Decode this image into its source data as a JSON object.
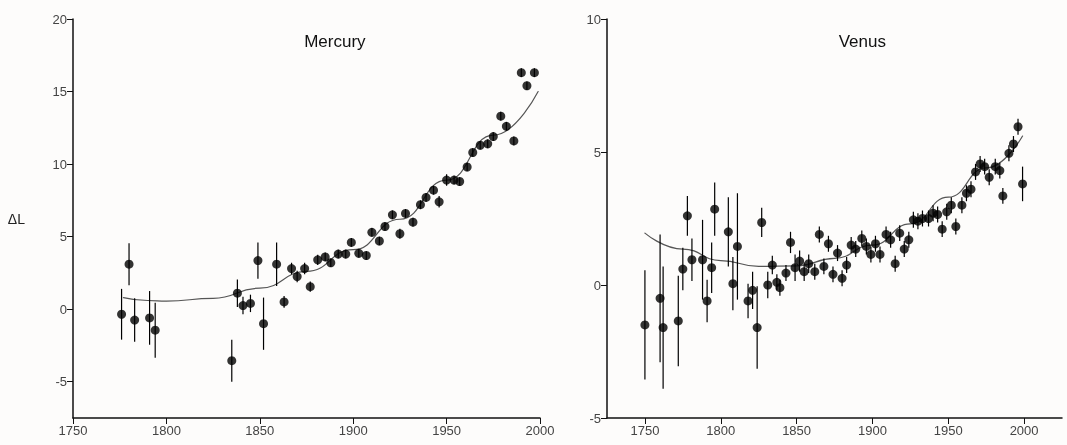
{
  "chart_data": [
    {
      "type": "scatter",
      "title": "Mercury",
      "ylabel": "ΔL",
      "xlim": [
        1750,
        2000
      ],
      "xticks": [
        1750,
        1800,
        1850,
        1900,
        1950,
        2000
      ],
      "ylim": [
        -7.5,
        20
      ],
      "yticks": [
        -5,
        0,
        5,
        10,
        15,
        20
      ],
      "marker": "circle",
      "grid": false,
      "series": [
        {
          "color": "#000000",
          "x": [
            1776,
            1780,
            1783,
            1791,
            1794,
            1835,
            1838,
            1841,
            1845,
            1849,
            1852,
            1859,
            1863,
            1867,
            1870,
            1874,
            1877,
            1881,
            1885,
            1888,
            1892,
            1896,
            1899,
            1903,
            1907,
            1910,
            1914,
            1917,
            1921,
            1925,
            1928,
            1932,
            1936,
            1939,
            1943,
            1946,
            1950,
            1954,
            1957,
            1961,
            1964,
            1968,
            1972,
            1975,
            1979,
            1982,
            1986,
            1990,
            1993,
            1997
          ],
          "values": [
            -0.35,
            3.1,
            -0.75,
            -0.6,
            -1.45,
            -3.55,
            1.1,
            0.25,
            0.4,
            3.35,
            -1.0,
            3.1,
            0.5,
            2.8,
            2.25,
            2.8,
            1.55,
            3.4,
            3.6,
            3.2,
            3.8,
            3.8,
            4.6,
            3.85,
            3.7,
            5.3,
            4.7,
            5.7,
            6.5,
            5.2,
            6.6,
            6.0,
            7.2,
            7.7,
            8.2,
            7.4,
            8.9,
            8.9,
            8.8,
            9.8,
            10.8,
            11.3,
            11.4,
            11.9,
            13.3,
            12.6,
            11.6,
            16.3,
            15.4,
            16.3
          ],
          "errors": [
            1.75,
            1.45,
            1.5,
            1.85,
            1.9,
            1.45,
            0.95,
            0.6,
            0.6,
            1.25,
            1.8,
            1.5,
            0.4,
            0.4,
            0.4,
            0.4,
            0.35,
            0.35,
            0.3,
            0.3,
            0.3,
            0.3,
            0.3,
            0.3,
            0.3,
            0.3,
            0.3,
            0.3,
            0.3,
            0.35,
            0.3,
            0.3,
            0.3,
            0.3,
            0.3,
            0.4,
            0.4,
            0.3,
            0.3,
            0.3,
            0.3,
            0.3,
            0.3,
            0.3,
            0.3,
            0.3,
            0.3,
            0.3,
            0.3,
            0.3
          ]
        },
        {
          "type": "line",
          "color": "#555555",
          "marker": "none",
          "x": [
            1777,
            1790,
            1800,
            1825,
            1850,
            1875,
            1900,
            1925,
            1950,
            1975,
            1999
          ],
          "values": [
            0.8,
            0.6,
            0.55,
            0.75,
            1.45,
            2.6,
            4.1,
            6.2,
            8.9,
            12.0,
            15.0
          ]
        }
      ]
    },
    {
      "type": "scatter",
      "title": "Venus",
      "xlim": [
        1725,
        2025
      ],
      "xticks": [
        1750,
        1800,
        1850,
        1900,
        1950,
        2000
      ],
      "ylim": [
        -5,
        10
      ],
      "yticks": [
        -5,
        0,
        5,
        10
      ],
      "marker": "circle",
      "grid": false,
      "series": [
        {
          "color": "#000000",
          "x": [
            1750,
            1760,
            1762,
            1772,
            1775,
            1778,
            1781,
            1788,
            1791,
            1794,
            1796,
            1805,
            1808,
            1811,
            1818,
            1821,
            1824,
            1827,
            1831,
            1834,
            1837,
            1839,
            1843,
            1846,
            1849,
            1852,
            1855,
            1858,
            1862,
            1865,
            1868,
            1871,
            1874,
            1877,
            1880,
            1883,
            1886,
            1889,
            1893,
            1896,
            1899,
            1902,
            1905,
            1909,
            1912,
            1915,
            1918,
            1921,
            1924,
            1927,
            1930,
            1933,
            1937,
            1940,
            1943,
            1946,
            1949,
            1952,
            1955,
            1959,
            1962,
            1965,
            1968,
            1971,
            1974,
            1977,
            1981,
            1984,
            1986,
            1990,
            1993,
            1996,
            1999
          ],
          "values": [
            -1.5,
            -0.5,
            -1.6,
            -1.35,
            0.6,
            2.6,
            0.95,
            0.95,
            -0.6,
            0.65,
            2.85,
            2.0,
            0.05,
            1.45,
            -0.6,
            -0.2,
            -1.6,
            2.35,
            0.0,
            0.75,
            0.1,
            -0.1,
            0.45,
            1.6,
            0.65,
            0.9,
            0.5,
            0.8,
            0.5,
            1.9,
            0.7,
            1.55,
            0.4,
            1.2,
            0.25,
            0.75,
            1.5,
            1.35,
            1.75,
            1.45,
            1.15,
            1.55,
            1.15,
            1.9,
            1.7,
            0.8,
            1.95,
            1.35,
            1.7,
            2.45,
            2.4,
            2.5,
            2.5,
            2.7,
            2.65,
            2.1,
            2.75,
            3.0,
            2.2,
            3.0,
            3.45,
            3.6,
            4.25,
            4.55,
            4.45,
            4.05,
            4.45,
            4.3,
            3.35,
            4.95,
            5.3,
            5.95,
            3.8
          ],
          "errors": [
            2.05,
            2.4,
            2.3,
            1.7,
            0.8,
            0.75,
            0.8,
            1.5,
            0.8,
            0.95,
            1.0,
            1.3,
            1.0,
            2.0,
            0.65,
            0.7,
            1.55,
            0.55,
            0.5,
            0.35,
            0.3,
            0.3,
            0.3,
            0.4,
            0.5,
            0.4,
            0.35,
            0.35,
            0.3,
            0.3,
            0.3,
            0.3,
            0.3,
            0.3,
            0.3,
            0.3,
            0.3,
            0.3,
            0.3,
            0.3,
            0.3,
            0.3,
            0.3,
            0.3,
            0.3,
            0.3,
            0.3,
            0.3,
            0.3,
            0.3,
            0.3,
            0.3,
            0.3,
            0.3,
            0.3,
            0.3,
            0.3,
            0.3,
            0.3,
            0.3,
            0.3,
            0.3,
            0.3,
            0.3,
            0.3,
            0.3,
            0.3,
            0.3,
            0.3,
            0.3,
            0.3,
            0.3,
            0.65
          ]
        },
        {
          "type": "line",
          "color": "#555555",
          "marker": "none",
          "x": [
            1750,
            1775,
            1800,
            1825,
            1850,
            1875,
            1900,
            1925,
            1950,
            1975,
            1999
          ],
          "values": [
            1.95,
            1.35,
            0.92,
            0.7,
            0.72,
            1.0,
            1.5,
            2.3,
            3.3,
            4.4,
            5.6
          ]
        }
      ]
    }
  ]
}
